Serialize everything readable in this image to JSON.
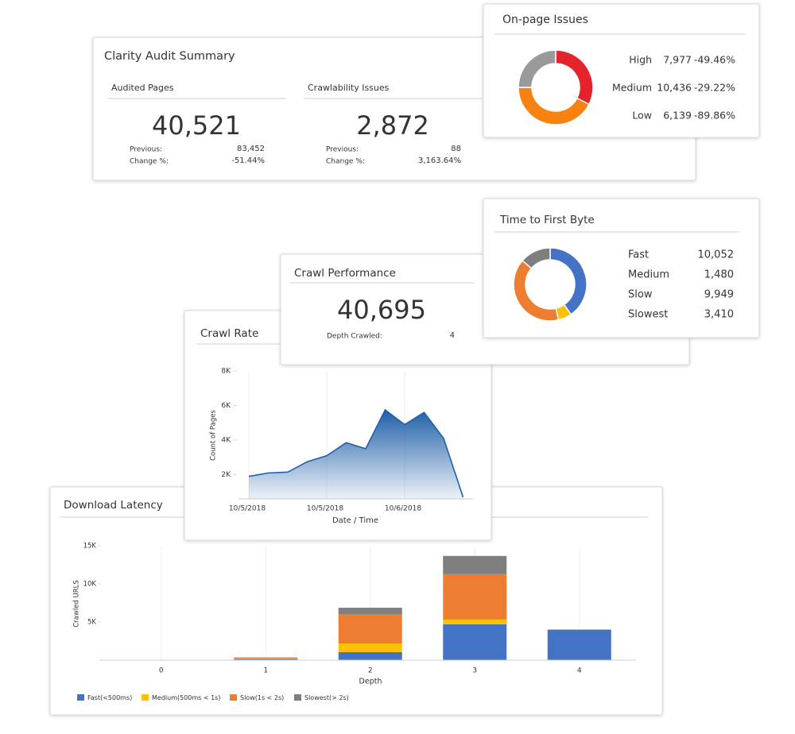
{
  "audit_summary": {
    "title": "Clarity Audit Summary",
    "cards": [
      {
        "label": "Audited Pages",
        "value": "40,521",
        "previous_label": "Previous:",
        "previous": "83,452",
        "change_label": "Change %:",
        "change": "-51.44%"
      },
      {
        "label": "Crawlability Issues",
        "value": "2,872",
        "previous_label": "Previous:",
        "previous": "88",
        "change_label": "Change %:",
        "change": "3,163.64%"
      }
    ]
  },
  "onpage_issues": {
    "type": "pie",
    "title": "On-page Issues",
    "categories": [
      "High",
      "Medium",
      "Low"
    ],
    "values": [
      7977,
      10436,
      6139
    ],
    "value_labels": [
      "7,977",
      "10,436",
      "6,139"
    ],
    "changes": [
      "-49.46%",
      "-29.22%",
      "-89.86%"
    ],
    "colors": [
      "#e3242b",
      "#f7820f",
      "#9a9a9a"
    ]
  },
  "time_to_first_byte": {
    "type": "pie",
    "title": "Time to First Byte",
    "categories": [
      "Fast",
      "Medium",
      "Slow",
      "Slowest"
    ],
    "values": [
      10052,
      1480,
      9949,
      3410
    ],
    "value_labels": [
      "10,052",
      "1,480",
      "9,949",
      "3,410"
    ],
    "colors": [
      "#4472c4",
      "#ffc000",
      "#ed7d31",
      "#7f7f7f"
    ]
  },
  "crawl_performance": {
    "title": "Crawl Performance",
    "value": "40,695",
    "depth_label": "Depth Crawled:",
    "depth": "4"
  },
  "crawl_rate": {
    "type": "area",
    "title": "Crawl Rate",
    "x_label": "Date / Time",
    "y_label": "Count of Pages",
    "categories": [
      "10/5/2018",
      null,
      null,
      null,
      "10/5/2018",
      null,
      null,
      null,
      "10/6/2018",
      null,
      null,
      null
    ],
    "values": [
      1900,
      2100,
      2150,
      2750,
      3100,
      3850,
      3500,
      5750,
      4900,
      5600,
      4100,
      700
    ],
    "color": "#1f5fa8",
    "ylim": [
      600,
      8000
    ],
    "yticks": [
      {
        "value": 2000,
        "label": "2K"
      },
      {
        "value": 4000,
        "label": "4K"
      },
      {
        "value": 6000,
        "label": "6K"
      },
      {
        "value": 8000,
        "label": "8K"
      }
    ]
  },
  "download_latency": {
    "type": "stacked_bar",
    "title": "Download Latency",
    "x_label": "Depth",
    "y_label": "Crawled URLS",
    "categories": [
      "0",
      "1",
      "2",
      "3",
      "4"
    ],
    "series": [
      {
        "name": "Fast(<500ms)",
        "color": "#4472c4",
        "values": [
          0,
          150,
          1040,
          4700,
          4000
        ]
      },
      {
        "name": "Medium(500ms < 1s)",
        "color": "#ffc000",
        "values": [
          0,
          50,
          1150,
          625,
          0
        ]
      },
      {
        "name": "Slow(1s < 2s)",
        "color": "#ed7d31",
        "values": [
          0,
          100,
          3850,
          5940,
          0
        ]
      },
      {
        "name": "Slowest(> 2s)",
        "color": "#7f7f7f",
        "values": [
          0,
          50,
          830,
          2400,
          0
        ]
      }
    ],
    "ylim": [
      0,
      15000
    ],
    "yticks": [
      {
        "value": 5000,
        "label": "5K"
      },
      {
        "value": 10000,
        "label": "10K"
      },
      {
        "value": 15000,
        "label": "15K"
      }
    ]
  }
}
